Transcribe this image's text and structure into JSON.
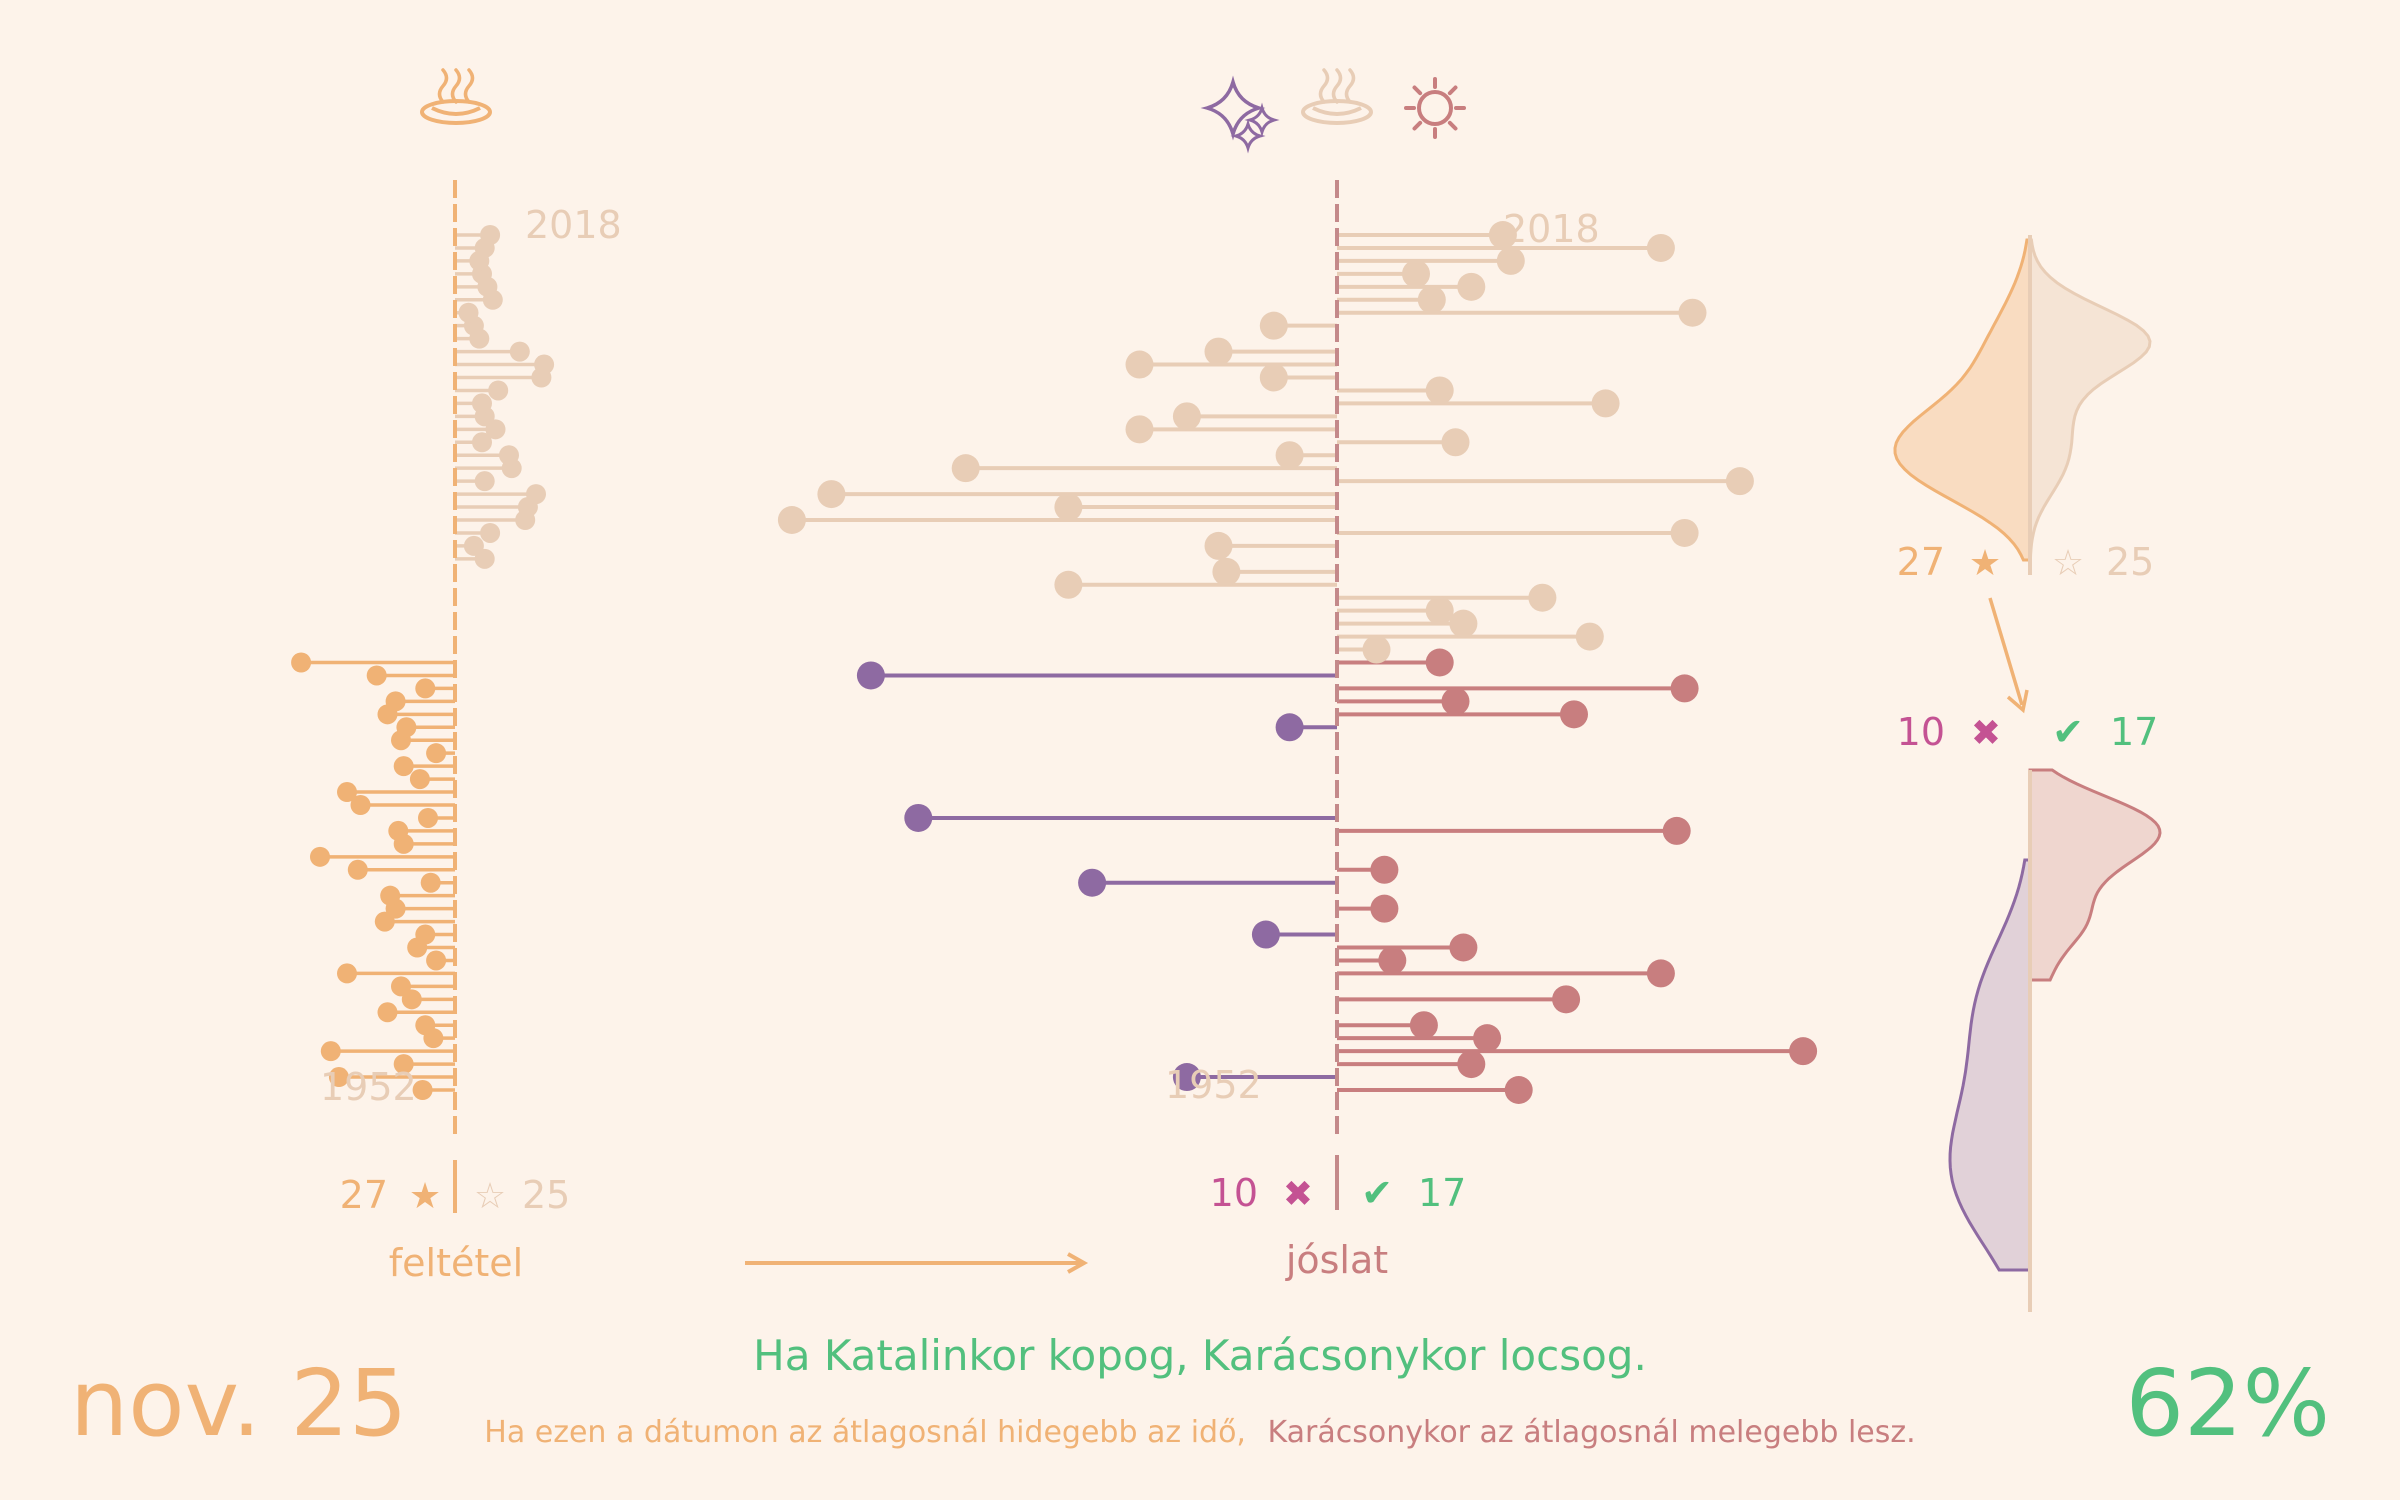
{
  "colors": {
    "background": "#fdf3ea",
    "cold": "#f0b275",
    "warm_ref": "#e8cdb6",
    "cold_forecast": "#8e6aa2",
    "warm_forecast": "#c87e7f",
    "wrong": "#c45293",
    "right": "#52c07e",
    "axis_forecast": "#c4898a"
  },
  "icons": {
    "condition": "hot-springs-icon",
    "forecast": [
      "sparkles-icon",
      "hot-springs-icon",
      "sun-icon"
    ]
  },
  "labels": {
    "condition_axis": "feltétel",
    "forecast_axis": "jóslat",
    "year_top": "2018",
    "year_bottom": "1952"
  },
  "counts": {
    "condition_cold": "27",
    "condition_warm": "25",
    "forecast_wrong": "10",
    "forecast_right": "17",
    "star_filled": "★",
    "star_empty": "☆",
    "cross": "✖",
    "check": "✔"
  },
  "footer": {
    "date": "nov. 25",
    "saying": "Ha Katalinkor kopog, Karácsonykor locsog.",
    "explanation_condition": "Ha ezen a dátumon az átlagosnál hidegebb az idő,",
    "explanation_forecast": "Karácsonykor az átlagosnál melegebb lesz.",
    "accuracy": "62%"
  },
  "chart_data": {
    "type": "lollipop",
    "years": {
      "first": 1952,
      "last": 2018
    },
    "condition_anomaly": [
      -1.2,
      -4.3,
      -1.9,
      -4.6,
      -0.8,
      -1.1,
      -2.5,
      -1.6,
      -2.0,
      -4.0,
      -0.7,
      -1.4,
      -1.1,
      -2.6,
      -2.2,
      -2.4,
      -0.9,
      -3.6,
      -5.0,
      -1.9,
      -2.1,
      -1.0,
      -3.5,
      -4.0,
      -1.3,
      -1.9,
      -0.7,
      -2.0,
      -1.8,
      -2.5,
      -2.2,
      -1.1,
      -2.9,
      -5.7,
      0.0,
      0.0,
      0.0,
      0.0,
      0.0,
      0.0,
      0.0,
      1.1,
      0.7,
      1.3,
      2.6,
      2.7,
      3.0,
      1.1,
      2.1,
      2.0,
      1.0,
      1.5,
      1.1,
      1.0,
      1.6,
      3.2,
      3.3,
      2.4,
      0.9,
      0.7,
      0.5,
      1.4,
      1.2,
      1.0,
      0.9,
      1.1,
      1.3
    ],
    "forecast_anomaly": [
      2.3,
      -1.9,
      1.7,
      5.9,
      1.9,
      1.1,
      0.0,
      2.9,
      0.0,
      4.1,
      0.7,
      1.6,
      -0.9,
      0.0,
      0.6,
      0.0,
      -3.1,
      0.6,
      0.0,
      0.0,
      4.3,
      -5.3,
      0.0,
      0.0,
      0.0,
      0.0,
      0.0,
      0.0,
      -0.6,
      3.0,
      1.5,
      4.4,
      -5.9,
      1.3,
      0.5,
      3.2,
      1.6,
      1.3,
      2.6,
      -3.4,
      -1.4,
      0.0,
      -1.5,
      4.4,
      -6.9,
      -3.4,
      -6.4,
      5.1,
      -4.7,
      -0.6,
      1.5,
      -2.5,
      -1.9,
      3.4,
      1.3,
      -0.8,
      -2.5,
      -1.5,
      0.0,
      -0.8,
      4.5,
      1.2,
      1.7,
      1.0,
      2.2,
      4.1,
      2.1
    ],
    "summary": {
      "condition_cold": 27,
      "condition_warm": 25,
      "forecast_wrong": 10,
      "forecast_right": 17,
      "accuracy_percent": 62
    }
  }
}
